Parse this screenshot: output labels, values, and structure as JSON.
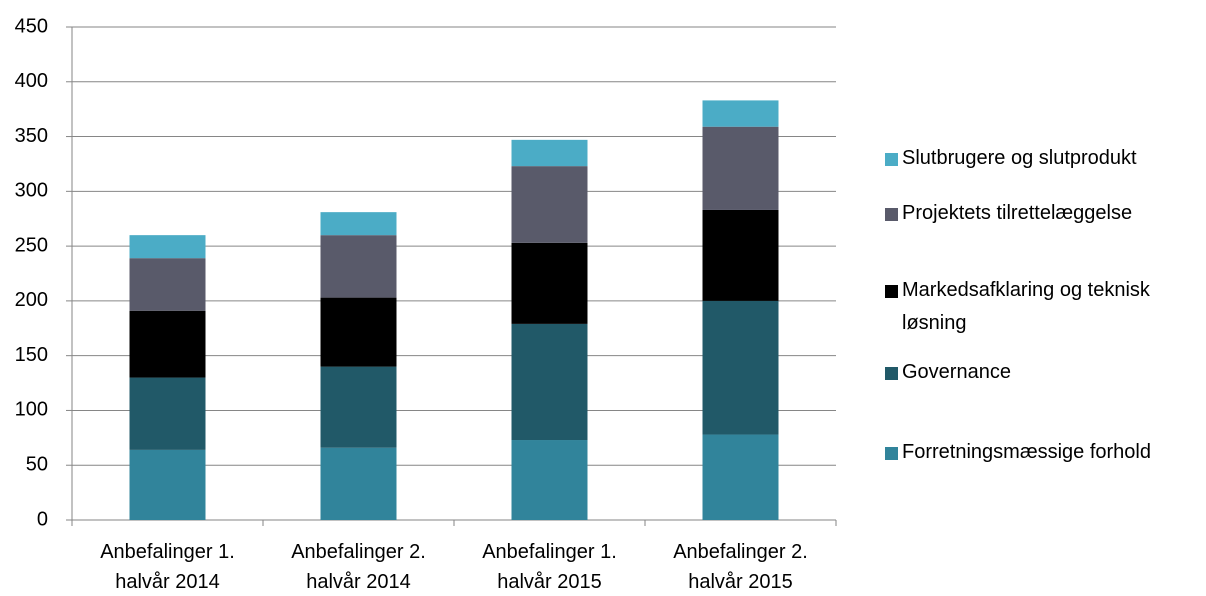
{
  "chart_data": {
    "type": "stacked_bar",
    "categories": [
      "Anbefalinger 1. halvår 2014",
      "Anbefalinger 2. halvår 2014",
      "Anbefalinger 1. halvår 2015",
      "Anbefalinger 2. halvår 2015"
    ],
    "series": [
      {
        "name": "Forretningsmæssige forhold",
        "color": "#31849b",
        "values": [
          64,
          66,
          73,
          78
        ]
      },
      {
        "name": "Governance",
        "color": "#215968",
        "values": [
          66,
          74,
          106,
          122
        ]
      },
      {
        "name": "Markedsafklaring og teknisk løsning",
        "color": "#000000",
        "values": [
          61,
          63,
          74,
          83
        ]
      },
      {
        "name": "Projektets tilrettelæggelse",
        "color": "#595a6a",
        "values": [
          48,
          57,
          70,
          76
        ]
      },
      {
        "name": "Slutbrugere og slutprodukt",
        "color": "#4bacc6",
        "values": [
          21,
          21,
          24,
          24
        ]
      }
    ],
    "ylim": [
      0,
      450
    ],
    "yticks": [
      0,
      50,
      100,
      150,
      200,
      250,
      300,
      350,
      400,
      450
    ],
    "grid": true,
    "legend": "right"
  }
}
